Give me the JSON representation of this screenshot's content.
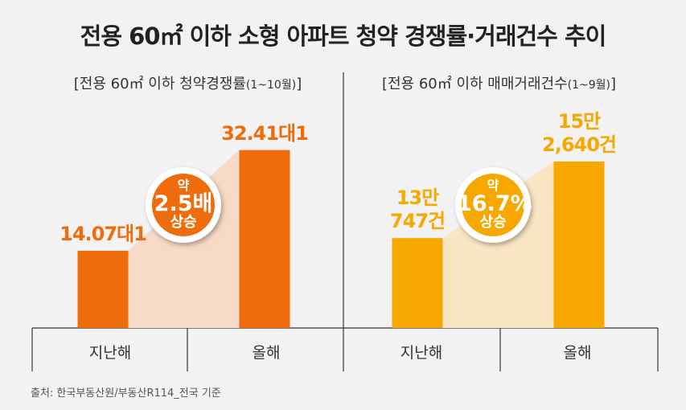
{
  "title": "전용 60㎡ 이하 소형 아파트 청약 경쟁률·거래건수 추이",
  "source": "출처: 한국부동산원/부동산R114_전국 기준",
  "chart_data": [
    {
      "type": "bar",
      "subtitle": [
        "[전용 60㎡ 이하 청약경쟁률",
        "(1~10월)",
        "]"
      ],
      "categories": [
        "지난해",
        "올해"
      ],
      "values": [
        14.07,
        32.41
      ],
      "value_labels": [
        "14.07대1",
        "32.41대1"
      ],
      "color": "#ee6c0c",
      "area_color": "#f6d9c6",
      "ylim": [
        0,
        35
      ],
      "annotation": [
        "약",
        "2.5배",
        "상승"
      ]
    },
    {
      "type": "bar",
      "subtitle": [
        "[전용 60㎡ 이하 매매거래건수",
        "(1~9월)",
        "]"
      ],
      "categories": [
        "지난해",
        "올해"
      ],
      "values": [
        130747,
        152640
      ],
      "value_labels": [
        "13만\n747건",
        "15만\n2,640건"
      ],
      "color": "#f6a800",
      "area_color": "#f8e6c2",
      "ylim": [
        105000,
        160000
      ],
      "annotation": [
        "약",
        "16.7%",
        "상승"
      ]
    }
  ]
}
